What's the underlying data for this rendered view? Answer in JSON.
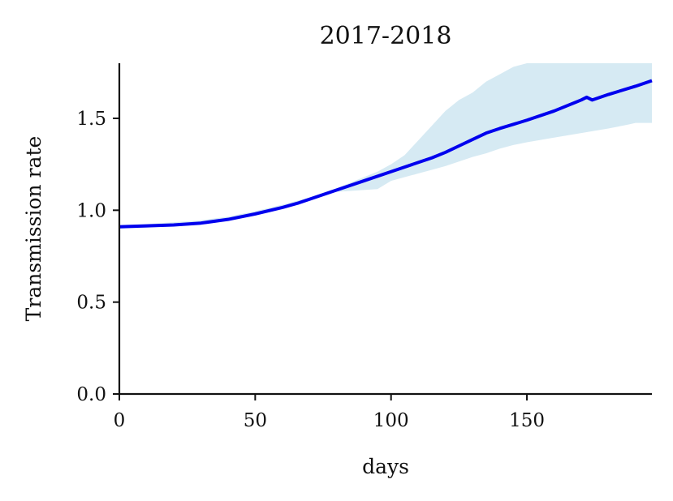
{
  "chart_data": {
    "type": "line",
    "title": "2017-2018",
    "xlabel": "days",
    "ylabel": "Transmission rate",
    "xlim": [
      0,
      196
    ],
    "ylim": [
      0,
      1.8
    ],
    "xticks": [
      0,
      50,
      100,
      150
    ],
    "xtick_labels": [
      "0",
      "50",
      "100",
      "150"
    ],
    "yticks": [
      0.0,
      0.5,
      1.0,
      1.5
    ],
    "ytick_labels": [
      "0.0",
      "0.5",
      "1.0",
      "1.5"
    ],
    "grid": false,
    "series": [
      {
        "style": "line",
        "color": "#0000ee",
        "x": [
          0,
          10,
          20,
          30,
          40,
          50,
          60,
          66,
          70,
          80,
          90,
          100,
          110,
          115,
          120,
          125,
          130,
          135,
          140,
          150,
          160,
          170,
          172,
          174,
          180,
          190,
          196
        ],
        "y": [
          0.91,
          0.915,
          0.92,
          0.93,
          0.95,
          0.98,
          1.015,
          1.04,
          1.06,
          1.11,
          1.16,
          1.21,
          1.26,
          1.285,
          1.315,
          1.35,
          1.385,
          1.42,
          1.445,
          1.49,
          1.54,
          1.6,
          1.615,
          1.6,
          1.63,
          1.675,
          1.705
        ]
      },
      {
        "style": "band",
        "color": "#d6eaf3",
        "x": [
          0,
          10,
          20,
          30,
          40,
          50,
          60,
          70,
          80,
          90,
          95,
          100,
          105,
          110,
          115,
          120,
          125,
          130,
          135,
          140,
          145,
          150,
          160,
          170,
          180,
          187,
          190,
          196
        ],
        "lower": [
          0.9,
          0.905,
          0.915,
          0.93,
          0.95,
          0.98,
          1.02,
          1.06,
          1.1,
          1.11,
          1.115,
          1.16,
          1.18,
          1.2,
          1.22,
          1.24,
          1.265,
          1.29,
          1.31,
          1.335,
          1.355,
          1.37,
          1.395,
          1.42,
          1.445,
          1.465,
          1.475,
          1.475
        ],
        "upper": [
          0.92,
          0.925,
          0.935,
          0.945,
          0.965,
          0.995,
          1.03,
          1.07,
          1.12,
          1.18,
          1.21,
          1.25,
          1.3,
          1.38,
          1.46,
          1.54,
          1.6,
          1.64,
          1.7,
          1.74,
          1.78,
          1.8,
          1.8,
          1.8,
          1.8,
          1.8,
          1.8,
          1.8
        ]
      }
    ]
  }
}
